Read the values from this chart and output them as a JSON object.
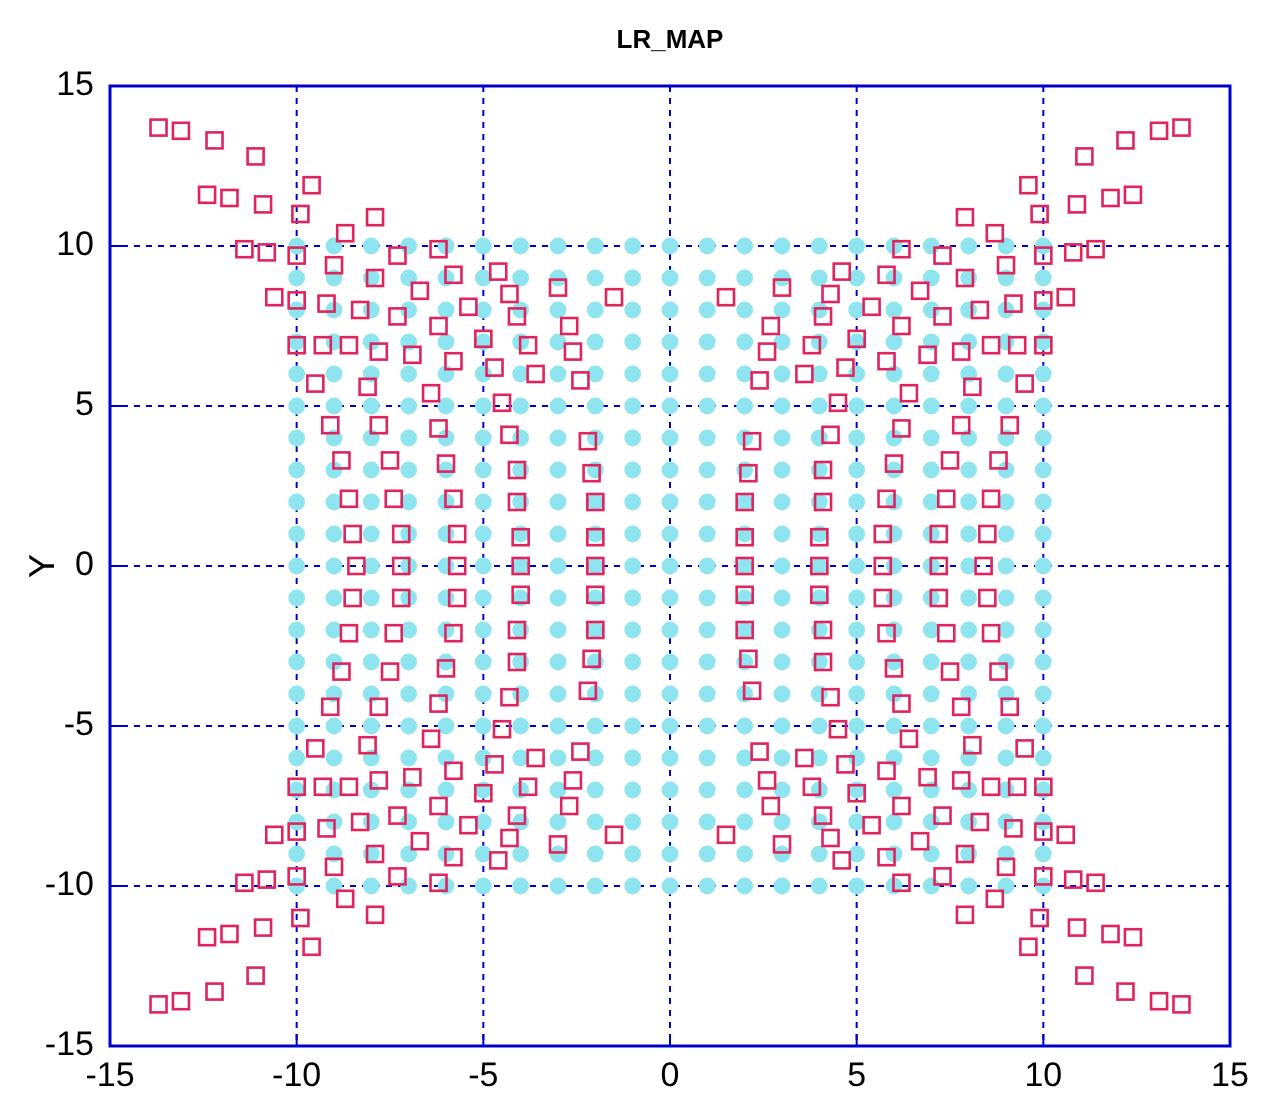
{
  "chart_data": {
    "type": "scatter",
    "title": "LR_MAP",
    "ylabel": "Y",
    "xlim": [
      -15,
      15
    ],
    "ylim": [
      -15,
      15
    ],
    "xticks": [
      -15,
      -10,
      -5,
      0,
      5,
      10,
      15
    ],
    "yticks": [
      -15,
      -10,
      -5,
      0,
      5,
      10,
      15
    ],
    "grid": true,
    "series": [
      {
        "color": "#8ee4ef",
        "marker": "circle",
        "x": [
          -10,
          -9,
          -8,
          -7,
          -6,
          -5,
          -4,
          -3,
          -2,
          -1,
          0,
          1,
          2,
          3,
          4,
          5,
          6,
          7,
          8,
          9,
          10,
          -10,
          -9,
          -8,
          -7,
          -6,
          -5,
          -4,
          -3,
          -2,
          -1,
          0,
          1,
          2,
          3,
          4,
          5,
          6,
          7,
          8,
          9,
          10,
          -10,
          -9,
          -8,
          -7,
          -6,
          -5,
          -4,
          -3,
          -2,
          -1,
          0,
          1,
          2,
          3,
          4,
          5,
          6,
          7,
          8,
          9,
          10,
          -10,
          -9,
          -8,
          -7,
          -6,
          -5,
          -4,
          -3,
          -2,
          -1,
          0,
          1,
          2,
          3,
          4,
          5,
          6,
          7,
          8,
          9,
          10,
          -10,
          -9,
          -8,
          -7,
          -6,
          -5,
          -4,
          -3,
          -2,
          -1,
          0,
          1,
          2,
          3,
          4,
          5,
          6,
          7,
          8,
          9,
          10,
          -10,
          -9,
          -8,
          -7,
          -6,
          -5,
          -4,
          -3,
          -2,
          -1,
          0,
          1,
          2,
          3,
          4,
          5,
          6,
          7,
          8,
          9,
          10,
          -10,
          -9,
          -8,
          -7,
          -6,
          -5,
          -4,
          -3,
          -2,
          -1,
          0,
          1,
          2,
          3,
          4,
          5,
          6,
          7,
          8,
          9,
          10,
          -10,
          -9,
          -8,
          -7,
          -6,
          -5,
          -4,
          -3,
          -2,
          -1,
          0,
          1,
          2,
          3,
          4,
          5,
          6,
          7,
          8,
          9,
          10,
          -10,
          -9,
          -8,
          -7,
          -6,
          -5,
          -4,
          -3,
          -2,
          -1,
          0,
          1,
          2,
          3,
          4,
          5,
          6,
          7,
          8,
          9,
          10,
          -10,
          -9,
          -8,
          -7,
          -6,
          -5,
          -4,
          -3,
          -2,
          -1,
          0,
          1,
          2,
          3,
          4,
          5,
          6,
          7,
          8,
          9,
          10,
          -10,
          -9,
          -8,
          -7,
          -6,
          -5,
          -4,
          -3,
          -2,
          -1,
          0,
          1,
          2,
          3,
          4,
          5,
          6,
          7,
          8,
          9,
          10,
          -10,
          -9,
          -8,
          -7,
          -6,
          -5,
          -4,
          -3,
          -2,
          -1,
          0,
          1,
          2,
          3,
          4,
          5,
          6,
          7,
          8,
          9,
          10,
          -10,
          -9,
          -8,
          -7,
          -6,
          -5,
          -4,
          -3,
          -2,
          -1,
          0,
          1,
          2,
          3,
          4,
          5,
          6,
          7,
          8,
          9,
          10,
          -10,
          -9,
          -8,
          -7,
          -6,
          -5,
          -4,
          -3,
          -2,
          -1,
          0,
          1,
          2,
          3,
          4,
          5,
          6,
          7,
          8,
          9,
          10,
          -10,
          -9,
          -8,
          -7,
          -6,
          -5,
          -4,
          -3,
          -2,
          -1,
          0,
          1,
          2,
          3,
          4,
          5,
          6,
          7,
          8,
          9,
          10,
          -10,
          -9,
          -8,
          -7,
          -6,
          -5,
          -4,
          -3,
          -2,
          -1,
          0,
          1,
          2,
          3,
          4,
          5,
          6,
          7,
          8,
          9,
          10,
          -10,
          -9,
          -8,
          -7,
          -6,
          -5,
          -4,
          -3,
          -2,
          -1,
          0,
          1,
          2,
          3,
          4,
          5,
          6,
          7,
          8,
          9,
          10,
          -10,
          -9,
          -8,
          -7,
          -6,
          -5,
          -4,
          -3,
          -2,
          -1,
          0,
          1,
          2,
          3,
          4,
          5,
          6,
          7,
          8,
          9,
          10,
          -10,
          -9,
          -8,
          -7,
          -6,
          -5,
          -4,
          -3,
          -2,
          -1,
          0,
          1,
          2,
          3,
          4,
          5,
          6,
          7,
          8,
          9,
          10,
          -10,
          -9,
          -8,
          -7,
          -6,
          -5,
          -4,
          -3,
          -2,
          -1,
          0,
          1,
          2,
          3,
          4,
          5,
          6,
          7,
          8,
          9,
          10,
          -10,
          -9,
          -8,
          -7,
          -6,
          -5,
          -4,
          -3,
          -2,
          -1,
          0,
          1,
          2,
          3,
          4,
          5,
          6,
          7,
          8,
          9,
          10
        ],
        "values": [
          10,
          10,
          10,
          10,
          10,
          10,
          10,
          10,
          10,
          10,
          10,
          10,
          10,
          10,
          10,
          10,
          10,
          10,
          10,
          10,
          10,
          9,
          9,
          9,
          9,
          9,
          9,
          9,
          9,
          9,
          9,
          9,
          9,
          9,
          9,
          9,
          9,
          9,
          9,
          9,
          9,
          9,
          8,
          8,
          8,
          8,
          8,
          8,
          8,
          8,
          8,
          8,
          8,
          8,
          8,
          8,
          8,
          8,
          8,
          8,
          8,
          8,
          8,
          7,
          7,
          7,
          7,
          7,
          7,
          7,
          7,
          7,
          7,
          7,
          7,
          7,
          7,
          7,
          7,
          7,
          7,
          7,
          7,
          7,
          6,
          6,
          6,
          6,
          6,
          6,
          6,
          6,
          6,
          6,
          6,
          6,
          6,
          6,
          6,
          6,
          6,
          6,
          6,
          6,
          6,
          5,
          5,
          5,
          5,
          5,
          5,
          5,
          5,
          5,
          5,
          5,
          5,
          5,
          5,
          5,
          5,
          5,
          5,
          5,
          5,
          5,
          4,
          4,
          4,
          4,
          4,
          4,
          4,
          4,
          4,
          4,
          4,
          4,
          4,
          4,
          4,
          4,
          4,
          4,
          4,
          4,
          4,
          3,
          3,
          3,
          3,
          3,
          3,
          3,
          3,
          3,
          3,
          3,
          3,
          3,
          3,
          3,
          3,
          3,
          3,
          3,
          3,
          3,
          2,
          2,
          2,
          2,
          2,
          2,
          2,
          2,
          2,
          2,
          2,
          2,
          2,
          2,
          2,
          2,
          2,
          2,
          2,
          2,
          2,
          1,
          1,
          1,
          1,
          1,
          1,
          1,
          1,
          1,
          1,
          1,
          1,
          1,
          1,
          1,
          1,
          1,
          1,
          1,
          1,
          1,
          0,
          0,
          0,
          0,
          0,
          0,
          0,
          0,
          0,
          0,
          0,
          0,
          0,
          0,
          0,
          0,
          0,
          0,
          0,
          0,
          0,
          -1,
          -1,
          -1,
          -1,
          -1,
          -1,
          -1,
          -1,
          -1,
          -1,
          -1,
          -1,
          -1,
          -1,
          -1,
          -1,
          -1,
          -1,
          -1,
          -1,
          -1,
          -2,
          -2,
          -2,
          -2,
          -2,
          -2,
          -2,
          -2,
          -2,
          -2,
          -2,
          -2,
          -2,
          -2,
          -2,
          -2,
          -2,
          -2,
          -2,
          -2,
          -2,
          -3,
          -3,
          -3,
          -3,
          -3,
          -3,
          -3,
          -3,
          -3,
          -3,
          -3,
          -3,
          -3,
          -3,
          -3,
          -3,
          -3,
          -3,
          -3,
          -3,
          -3,
          -4,
          -4,
          -4,
          -4,
          -4,
          -4,
          -4,
          -4,
          -4,
          -4,
          -4,
          -4,
          -4,
          -4,
          -4,
          -4,
          -4,
          -4,
          -4,
          -4,
          -4,
          -5,
          -5,
          -5,
          -5,
          -5,
          -5,
          -5,
          -5,
          -5,
          -5,
          -5,
          -5,
          -5,
          -5,
          -5,
          -5,
          -5,
          -5,
          -5,
          -5,
          -5,
          -6,
          -6,
          -6,
          -6,
          -6,
          -6,
          -6,
          -6,
          -6,
          -6,
          -6,
          -6,
          -6,
          -6,
          -6,
          -6,
          -6,
          -6,
          -6,
          -6,
          -6,
          -7,
          -7,
          -7,
          -7,
          -7,
          -7,
          -7,
          -7,
          -7,
          -7,
          -7,
          -7,
          -7,
          -7,
          -7,
          -7,
          -7,
          -7,
          -7,
          -7,
          -7,
          -8,
          -8,
          -8,
          -8,
          -8,
          -8,
          -8,
          -8,
          -8,
          -8,
          -8,
          -8,
          -8,
          -8,
          -8,
          -8,
          -8,
          -8,
          -8,
          -8,
          -8,
          -9,
          -9,
          -9,
          -9,
          -9,
          -9,
          -9,
          -9,
          -9,
          -9,
          -9,
          -9,
          -9,
          -9,
          -9,
          -9,
          -9,
          -9,
          -9,
          -9,
          -9,
          -10,
          -10,
          -10,
          -10,
          -10,
          -10,
          -10,
          -10,
          -10,
          -10,
          -10,
          -10,
          -10,
          -10,
          -10,
          -10,
          -10,
          -10,
          -10,
          -10,
          -10
        ]
      },
      {
        "color": "#e0245e",
        "marker": "square",
        "x": [
          -13.7,
          -13.1,
          -12.2,
          -11.1,
          -9.6,
          -12.4,
          -11.8,
          -10.9,
          -9.9,
          -7.9,
          -8.7,
          -11.4,
          -10.8,
          -10.0,
          -7.3,
          -6.2,
          -9.0,
          -7.9,
          -5.8,
          -4.6,
          -10.6,
          -10.0,
          -9.2,
          -8.3,
          -7.3,
          -6.7,
          -5.4,
          -4.3,
          -3.0,
          -4.1,
          -1.5,
          -6.2,
          -5.0,
          -2.7,
          -10.0,
          -9.3,
          -8.6,
          -7.8,
          -6.9,
          -5.8,
          -4.7,
          -3.8,
          -2.6,
          -9.5,
          -8.1,
          -6.4,
          -4.5,
          -3.6,
          -2.4,
          -9.1,
          -7.8,
          -6.2,
          -4.3,
          -2.2,
          -8.8,
          -7.5,
          -6.0,
          -4.1,
          -2.1,
          -8.6,
          -7.4,
          -5.8,
          -4.1,
          -2.0,
          -8.5,
          -7.2,
          -5.7,
          -4.0,
          -2.0,
          -8.4,
          -7.2,
          -5.7,
          -4.0,
          -2.0,
          13.7,
          13.1,
          12.2,
          11.1,
          9.6,
          12.4,
          11.8,
          10.9,
          9.9,
          7.9,
          8.7,
          11.4,
          10.8,
          10.0,
          7.3,
          6.2,
          9.0,
          7.9,
          5.8,
          4.6,
          10.6,
          10.0,
          9.2,
          8.3,
          7.3,
          6.7,
          5.4,
          4.3,
          3.0,
          4.1,
          1.5,
          6.2,
          5.0,
          2.7,
          10.0,
          9.3,
          8.6,
          7.8,
          6.9,
          5.8,
          4.7,
          3.8,
          2.6,
          9.5,
          8.1,
          6.4,
          4.5,
          3.6,
          2.4,
          9.1,
          7.8,
          6.2,
          4.3,
          2.2,
          8.8,
          7.5,
          6.0,
          4.1,
          2.1,
          8.6,
          7.4,
          5.8,
          4.1,
          2.0,
          8.5,
          7.2,
          5.7,
          4.0,
          2.0,
          8.4,
          7.2,
          5.7,
          4.0,
          2.0,
          -13.7,
          -13.1,
          -12.2,
          -11.1,
          -9.6,
          -12.4,
          -11.8,
          -10.9,
          -9.9,
          -7.9,
          -8.7,
          -11.4,
          -10.8,
          -10.0,
          -7.3,
          -6.2,
          -9.0,
          -7.9,
          -5.8,
          -4.6,
          -10.6,
          -10.0,
          -9.2,
          -8.3,
          -7.3,
          -6.7,
          -5.4,
          -4.3,
          -3.0,
          -4.1,
          -1.5,
          -6.2,
          -5.0,
          -2.7,
          -10.0,
          -9.3,
          -8.6,
          -7.8,
          -6.9,
          -5.8,
          -4.7,
          -3.8,
          -2.6,
          -9.5,
          -8.1,
          -6.4,
          -4.5,
          -3.6,
          -2.4,
          -9.1,
          -7.8,
          -6.2,
          -4.3,
          -2.2,
          -8.8,
          -7.5,
          -6.0,
          -4.1,
          -2.1,
          -8.6,
          -7.4,
          -5.8,
          -4.1,
          -2.0,
          -8.5,
          -7.2,
          -5.7,
          -4.0,
          -2.0,
          13.7,
          13.1,
          12.2,
          11.1,
          9.6,
          12.4,
          11.8,
          10.9,
          9.9,
          7.9,
          8.7,
          11.4,
          10.8,
          10.0,
          7.3,
          6.2,
          9.0,
          7.9,
          5.8,
          4.6,
          10.6,
          10.0,
          9.2,
          8.3,
          7.3,
          6.7,
          5.4,
          4.3,
          3.0,
          4.1,
          1.5,
          6.2,
          5.0,
          2.7,
          10.0,
          9.3,
          8.6,
          7.8,
          6.9,
          5.8,
          4.7,
          3.8,
          2.6,
          9.5,
          8.1,
          6.4,
          4.5,
          3.6,
          2.4,
          9.1,
          7.8,
          6.2,
          4.3,
          2.2,
          8.8,
          7.5,
          6.0,
          4.1,
          2.1,
          8.6,
          7.4,
          5.8,
          4.1,
          2.0,
          8.5,
          7.2,
          5.7,
          4.0,
          2.0
        ],
        "values": [
          13.7,
          13.6,
          13.3,
          12.8,
          11.9,
          11.6,
          11.5,
          11.3,
          11.0,
          10.9,
          10.4,
          9.9,
          9.8,
          9.7,
          9.7,
          9.9,
          9.4,
          9.0,
          9.1,
          9.2,
          8.4,
          8.3,
          8.2,
          8.0,
          7.8,
          8.6,
          8.1,
          8.5,
          8.7,
          7.8,
          8.4,
          7.5,
          7.1,
          7.5,
          6.9,
          6.9,
          6.9,
          6.7,
          6.6,
          6.4,
          6.2,
          6.9,
          6.7,
          5.7,
          5.6,
          5.4,
          5.1,
          6.0,
          5.8,
          4.4,
          4.4,
          4.3,
          4.1,
          3.9,
          3.3,
          3.3,
          3.2,
          3.0,
          2.9,
          2.1,
          2.1,
          2.1,
          2.0,
          2.0,
          1.0,
          1.0,
          1.0,
          0.9,
          0.9,
          0,
          0,
          0,
          0,
          0,
          13.7,
          13.6,
          13.3,
          12.8,
          11.9,
          11.6,
          11.5,
          11.3,
          11.0,
          10.9,
          10.4,
          9.9,
          9.8,
          9.7,
          9.7,
          9.9,
          9.4,
          9.0,
          9.1,
          9.2,
          8.4,
          8.3,
          8.2,
          8.0,
          7.8,
          8.6,
          8.1,
          8.5,
          8.7,
          7.8,
          8.4,
          7.5,
          7.1,
          7.5,
          6.9,
          6.9,
          6.9,
          6.7,
          6.6,
          6.4,
          6.2,
          6.9,
          6.7,
          5.7,
          5.6,
          5.4,
          5.1,
          6.0,
          5.8,
          4.4,
          4.4,
          4.3,
          4.1,
          3.9,
          3.3,
          3.3,
          3.2,
          3.0,
          2.9,
          2.1,
          2.1,
          2.1,
          2.0,
          2.0,
          1.0,
          1.0,
          1.0,
          0.9,
          0.9,
          0,
          0,
          0,
          0,
          0,
          -13.7,
          -13.6,
          -13.3,
          -12.8,
          -11.9,
          -11.6,
          -11.5,
          -11.3,
          -11.0,
          -10.9,
          -10.4,
          -9.9,
          -9.8,
          -9.7,
          -9.7,
          -9.9,
          -9.4,
          -9.0,
          -9.1,
          -9.2,
          -8.4,
          -8.3,
          -8.2,
          -8.0,
          -7.8,
          -8.6,
          -8.1,
          -8.5,
          -8.7,
          -7.8,
          -8.4,
          -7.5,
          -7.1,
          -7.5,
          -6.9,
          -6.9,
          -6.9,
          -6.7,
          -6.6,
          -6.4,
          -6.2,
          -6.9,
          -6.7,
          -5.7,
          -5.6,
          -5.4,
          -5.1,
          -6.0,
          -5.8,
          -4.4,
          -4.4,
          -4.3,
          -4.1,
          -3.9,
          -3.3,
          -3.3,
          -3.2,
          -3.0,
          -2.9,
          -2.1,
          -2.1,
          -2.1,
          -2.0,
          -2.0,
          -1.0,
          -1.0,
          -1.0,
          -0.9,
          -0.9,
          -13.7,
          -13.6,
          -13.3,
          -12.8,
          -11.9,
          -11.6,
          -11.5,
          -11.3,
          -11.0,
          -10.9,
          -10.4,
          -9.9,
          -9.8,
          -9.7,
          -9.7,
          -9.9,
          -9.4,
          -9.0,
          -9.1,
          -9.2,
          -8.4,
          -8.3,
          -8.2,
          -8.0,
          -7.8,
          -8.6,
          -8.1,
          -8.5,
          -8.7,
          -7.8,
          -8.4,
          -7.5,
          -7.1,
          -7.5,
          -6.9,
          -6.9,
          -6.9,
          -6.7,
          -6.6,
          -6.4,
          -6.2,
          -6.9,
          -6.7,
          -5.7,
          -5.6,
          -5.4,
          -5.1,
          -6.0,
          -5.8,
          -4.4,
          -4.4,
          -4.3,
          -4.1,
          -3.9,
          -3.3,
          -3.3,
          -3.2,
          -3.0,
          -2.9,
          -2.1,
          -2.1,
          -2.1,
          -2.0,
          -2.0,
          -1.0,
          -1.0,
          -1.0,
          -0.9,
          -0.9
        ]
      }
    ]
  }
}
